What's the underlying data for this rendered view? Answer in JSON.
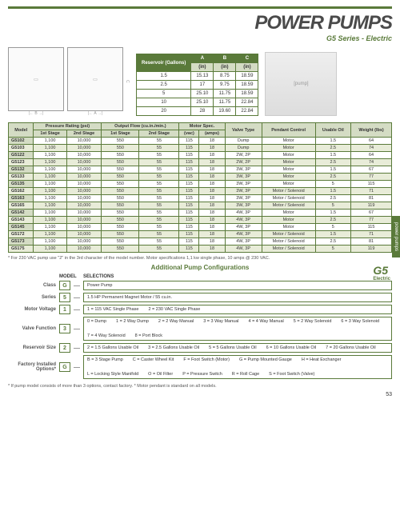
{
  "header": {
    "title": "POWER PUMPS",
    "subtitle": "G5 Series - Electric"
  },
  "sidetab": "power pumps",
  "dim": {
    "reservoir_label": "Reservoir\n(Gallons)",
    "cols": [
      "A",
      "B",
      "C"
    ],
    "unit": "(in)",
    "rows": [
      [
        "1.5",
        "15.13",
        "8.75",
        "18.59"
      ],
      [
        "2.5",
        "17",
        "9.75",
        "18.59"
      ],
      [
        "5",
        "25.10",
        "11.75",
        "18.59"
      ],
      [
        "10",
        "25.10",
        "11.75",
        "22.84"
      ],
      [
        "20",
        "28",
        "19.60",
        "22.84"
      ]
    ]
  },
  "main": {
    "headers1": [
      "Model",
      "Pressure Rating (psi)",
      "Output Flow (cu.in./min.)",
      "Motor Spec.",
      "Valve\nType",
      "Pendant\nControl",
      "Usable\nOil",
      "Weight\n(lbs)"
    ],
    "headers2": [
      "1st Stage",
      "2nd Stage",
      "1st Stage",
      "2nd Stage",
      "(vac)",
      "(amps)"
    ],
    "rows": [
      [
        "G5102",
        "1,100",
        "10,000",
        "550",
        "55",
        "115",
        "18",
        "Dump",
        "Motor",
        "1.5",
        "64"
      ],
      [
        "G5103",
        "1,100",
        "10,000",
        "550",
        "55",
        "115",
        "18",
        "Dump",
        "Motor",
        "2.5",
        "74"
      ],
      [
        "G5122",
        "1,100",
        "10,000",
        "550",
        "55",
        "115",
        "18",
        "2W, 2P",
        "Motor",
        "1.5",
        "64"
      ],
      [
        "G5123",
        "1,100",
        "10,000",
        "550",
        "55",
        "115",
        "18",
        "2W, 2P",
        "Motor",
        "2.5",
        "74"
      ],
      [
        "G5132",
        "1,100",
        "10,000",
        "550",
        "55",
        "115",
        "18",
        "3W, 3P",
        "Motor",
        "1.5",
        "67"
      ],
      [
        "G5133",
        "1,100",
        "10,000",
        "550",
        "55",
        "115",
        "18",
        "3W, 3P",
        "Motor",
        "2.5",
        "77"
      ],
      [
        "G5135",
        "1,100",
        "10,000",
        "550",
        "55",
        "115",
        "18",
        "3W, 3P",
        "Motor",
        "5",
        "115"
      ],
      [
        "G5162",
        "1,100",
        "10,000",
        "550",
        "55",
        "115",
        "18",
        "3W, 3P",
        "Motor / Solenoid",
        "1.5",
        "71"
      ],
      [
        "G5163",
        "1,100",
        "10,000",
        "550",
        "55",
        "115",
        "18",
        "3W, 3P",
        "Motor / Solenoid",
        "2.5",
        "81"
      ],
      [
        "G5165",
        "1,100",
        "10,000",
        "550",
        "55",
        "115",
        "18",
        "3W, 3P",
        "Motor / Solenoid",
        "5",
        "119"
      ],
      [
        "G5142",
        "1,100",
        "10,000",
        "550",
        "55",
        "115",
        "18",
        "4W, 3P",
        "Motor",
        "1.5",
        "67"
      ],
      [
        "G5143",
        "1,100",
        "10,000",
        "550",
        "55",
        "115",
        "18",
        "4W, 3P",
        "Motor",
        "2.5",
        "77"
      ],
      [
        "G5145",
        "1,100",
        "10,000",
        "550",
        "55",
        "115",
        "18",
        "4W, 3P",
        "Motor",
        "5",
        "115"
      ],
      [
        "G5172",
        "1,100",
        "10,000",
        "550",
        "55",
        "115",
        "18",
        "4W, 3P",
        "Motor / Solenoid",
        "1.5",
        "71"
      ],
      [
        "G5173",
        "1,100",
        "10,000",
        "550",
        "55",
        "115",
        "18",
        "4W, 3P",
        "Motor / Solenoid",
        "2.5",
        "81"
      ],
      [
        "G5175",
        "1,100",
        "10,000",
        "550",
        "55",
        "115",
        "18",
        "4W, 3P",
        "Motor / Solenoid",
        "5",
        "119"
      ]
    ]
  },
  "footnote1": "* For 230 VAC pump use \"2\" in the 3rd character of the model number. Motor specifications 1,1 kw single phase, 10 amps @ 230 VAC.",
  "addcfg_title": "Additional Pump Configurations",
  "cfg_model": "MODEL",
  "cfg_sel": "SELECTIONS",
  "cfg": [
    {
      "label": "Class",
      "code": "G",
      "opts": [
        "Power Pump"
      ]
    },
    {
      "label": "Series",
      "code": "5",
      "opts": [
        "1.5 HP Permanent Magnet Motor / 55 cu.in."
      ]
    },
    {
      "label": "Motor Voltage",
      "code": "1",
      "opts": [
        "1 = 115 VAC Single Phase",
        "2 = 230 VAC Single Phase"
      ]
    },
    {
      "label": "Valve Function",
      "code": "3",
      "opts": [
        "0 = Dump",
        "1 = 2 Way Dump",
        "2 = 2 Way Manual",
        "3 = 3 Way Manual",
        "4 = 4 Way Manual",
        "5 = 2 Way Solenoid",
        "6 = 3 Way Solenoid",
        "7 = 4 Way Solenoid",
        "8 = Port Block"
      ]
    },
    {
      "label": "Reservoir Size",
      "code": "2",
      "opts": [
        "2 = 1.5 Gallons Usable Oil",
        "3 = 2.5 Gallons Usable Oil",
        "5 = 5 Gallons Usable Oil",
        "6 = 10 Gallons Usable Oil",
        "7 = 20  Gallons Usable Oil"
      ]
    },
    {
      "label": "Factory\nInstalled Options*",
      "code": "G",
      "opts": [
        "B = 3 Stage Pump",
        "C = Caster Wheel Kit",
        "F = Foot Switch (Motor)",
        "G = Pump Mounted Gauge",
        "H = Heat Exchanger",
        "L = Locking Style Manifold",
        "O = Oil Filter",
        "P = Pressure Switch",
        "R = Roll Cage",
        "S = Foot Switch (Valve)"
      ]
    }
  ],
  "footnote2": "* If pump model consists of more than 3 options, contact factory. * Motor pendant is standard on all models.",
  "logo": {
    "brand": "G5",
    "tag": "Electric"
  },
  "pagenum": "53",
  "dwg_labels": {
    "a": "A",
    "b": "B",
    "c": "C"
  }
}
